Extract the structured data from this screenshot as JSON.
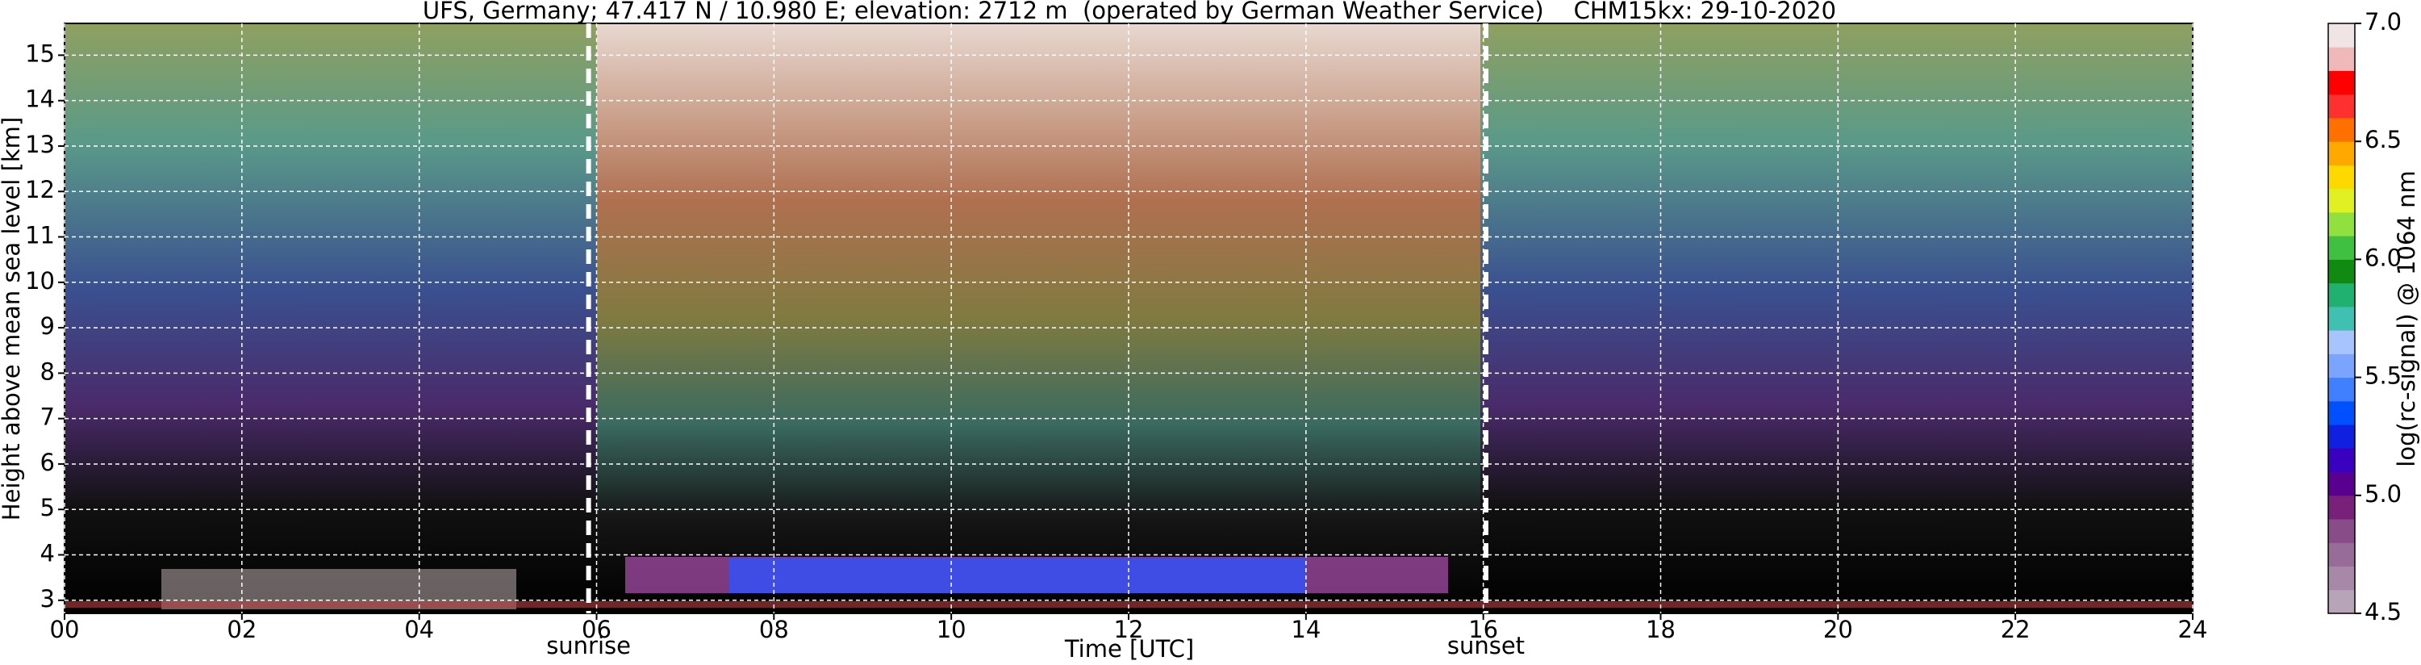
{
  "chart_data": {
    "type": "heatmap",
    "title": "UFS, Germany; 47.417 N / 10.980 E; elevation: 2712 m  (operated by German Weather Service)    CHM15kx: 29-10-2020",
    "x_label": "Time [UTC]",
    "y_label": "Height above mean sea level [km]",
    "colorbar_label": "log(rc-signal) @ 1064 nm",
    "xlim": [
      0,
      24
    ],
    "xticks": [
      {
        "value": 0,
        "label": "00"
      },
      {
        "value": 2,
        "label": "02"
      },
      {
        "value": 4,
        "label": "04"
      },
      {
        "value": 6,
        "label": "06"
      },
      {
        "value": 8,
        "label": "08"
      },
      {
        "value": 10,
        "label": "10"
      },
      {
        "value": 12,
        "label": "12"
      },
      {
        "value": 14,
        "label": "14"
      },
      {
        "value": 16,
        "label": "16"
      },
      {
        "value": 18,
        "label": "18"
      },
      {
        "value": 20,
        "label": "20"
      },
      {
        "value": 22,
        "label": "22"
      },
      {
        "value": 24,
        "label": "24"
      }
    ],
    "ylim": [
      2.712,
      15.7
    ],
    "yticks": [
      3,
      4,
      5,
      6,
      7,
      8,
      9,
      10,
      11,
      12,
      13,
      14,
      15
    ],
    "grid": true,
    "clim": [
      4.5,
      7.0
    ],
    "cticks": [
      4.5,
      {
        "value": 5.0,
        "label": "5.0"
      },
      5.5,
      {
        "value": 6.0,
        "label": "6.0"
      },
      6.5,
      {
        "value": 7.0,
        "label": "7.0"
      }
    ],
    "colormap": [
      "#b8a4b8",
      "#a888a8",
      "#986c98",
      "#884c88",
      "#78207a",
      "#5a0090",
      "#3a00c0",
      "#1020e0",
      "#0050ff",
      "#4080ff",
      "#7aa4ff",
      "#a8c4ff",
      "#40c0b0",
      "#20b070",
      "#108a10",
      "#40c040",
      "#90e040",
      "#e0f020",
      "#ffd800",
      "#ffa800",
      "#ff7000",
      "#ff3030",
      "#ff0000",
      "#f0b8b8",
      "#f0e4e4"
    ],
    "annotations": [
      {
        "text": "sunrise",
        "x": 5.91
      },
      {
        "text": "sunset",
        "x": 16.03
      }
    ]
  }
}
